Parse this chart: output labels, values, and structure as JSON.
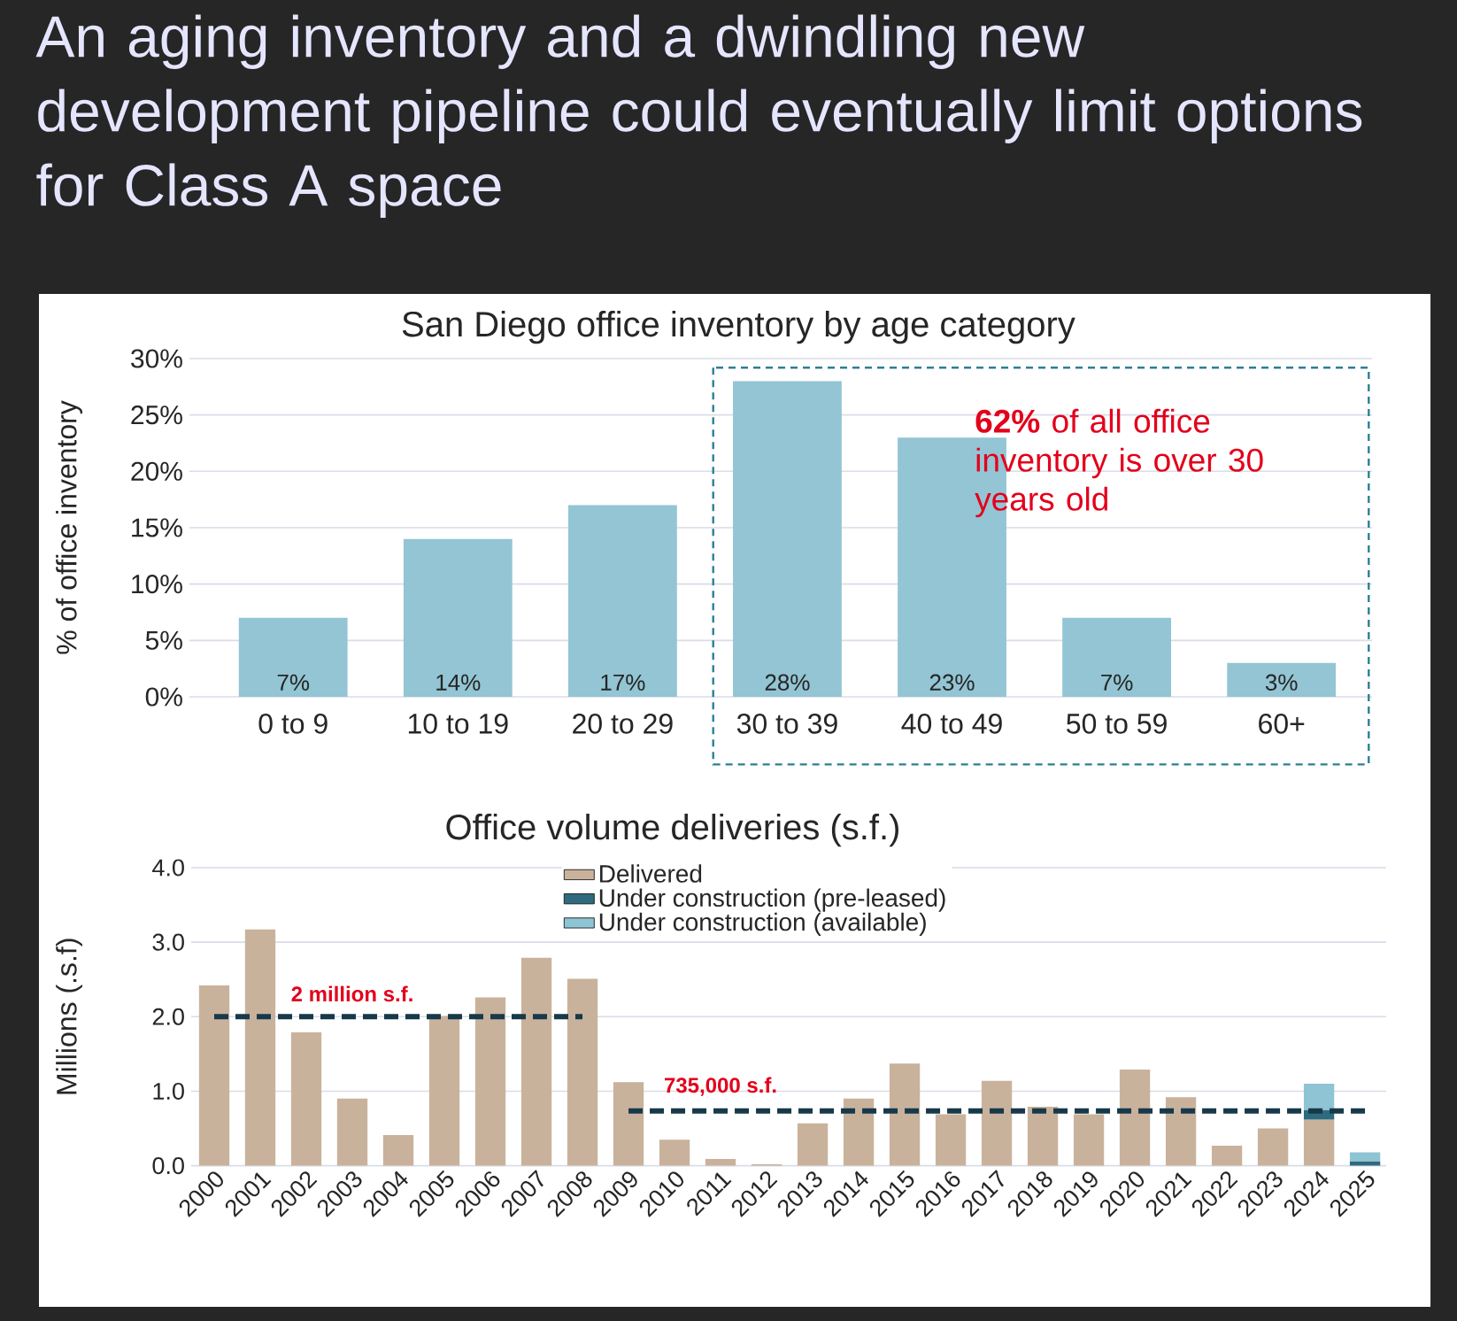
{
  "chart_data": [
    {
      "type": "bar",
      "title": "An aging inventory and a dwindling new development pipeline could eventually limit options for Class A space",
      "subtitle": "San Diego office inventory by age category",
      "ylabel": "% of office inventory",
      "categories": [
        "0 to 9",
        "10 to 19",
        "20 to 29",
        "30 to 39",
        "40 to 49",
        "50 to 59",
        "60+"
      ],
      "values": [
        7,
        14,
        17,
        28,
        23,
        7,
        3
      ],
      "value_labels": [
        "7%",
        "14%",
        "17%",
        "28%",
        "23%",
        "7%",
        "3%"
      ],
      "color": "#93c5d4",
      "ylim": [
        0,
        30
      ],
      "yticks": [
        {
          "value": 0,
          "label": "0%"
        },
        {
          "value": 5,
          "label": "5%"
        },
        {
          "value": 10,
          "label": "10%"
        },
        {
          "value": 15,
          "label": "15%"
        },
        {
          "value": 20,
          "label": "20%"
        },
        {
          "value": 25,
          "label": "25%"
        },
        {
          "value": 30,
          "label": "30%"
        }
      ],
      "grid": "y",
      "annotations": [
        "**62%** of all office inventory is over 30 years old"
      ]
    },
    {
      "type": "bar",
      "title": "Office volume deliveries (s.f.)",
      "ylabel": "Millions (.s.f)",
      "categories": [
        "2000",
        "2001",
        "2002",
        "2003",
        "2004",
        "2005",
        "2006",
        "2007",
        "2008",
        "2009",
        "2010",
        "2011",
        "2012",
        "2013",
        "2014",
        "2015",
        "2016",
        "2017",
        "2018",
        "2019",
        "2020",
        "2021",
        "2022",
        "2023",
        "2024",
        "2025"
      ],
      "stacked": true,
      "series": [
        {
          "name": "Delivered",
          "color": "#c9b29c",
          "values": [
            2.42,
            3.17,
            1.79,
            0.9,
            0.41,
            2.01,
            2.26,
            2.79,
            2.51,
            1.12,
            0.35,
            0.09,
            0.02,
            0.57,
            0.9,
            1.37,
            0.69,
            1.14,
            0.79,
            0.69,
            1.29,
            0.92,
            0.27,
            0.5,
            0.62,
            null
          ]
        },
        {
          "name": "Under construction (pre-leased)",
          "color": "#2e6b7e",
          "values": [
            null,
            null,
            null,
            null,
            null,
            null,
            null,
            null,
            null,
            null,
            null,
            null,
            null,
            null,
            null,
            null,
            null,
            null,
            null,
            null,
            null,
            null,
            null,
            null,
            0.13,
            0.06
          ]
        },
        {
          "name": "Under construction (available)",
          "color": "#8fc4d4",
          "values": [
            null,
            null,
            null,
            null,
            null,
            null,
            null,
            null,
            null,
            null,
            null,
            null,
            null,
            null,
            null,
            null,
            null,
            null,
            null,
            null,
            null,
            null,
            null,
            null,
            0.35,
            0.12
          ]
        },
        {
          "type": "line",
          "color": "#17394a",
          "line_style": "dashed",
          "values": [
            2.0,
            2.0,
            2.0,
            2.0,
            2.0,
            2.0,
            2.0,
            2.0,
            2.0,
            null,
            null,
            null,
            null,
            null,
            null,
            null,
            null,
            null,
            null,
            null,
            null,
            null,
            null,
            null,
            null,
            null
          ]
        },
        {
          "type": "line",
          "color": "#17394a",
          "line_style": "dashed",
          "values": [
            null,
            null,
            null,
            null,
            null,
            null,
            null,
            null,
            null,
            0.735,
            0.735,
            0.735,
            0.735,
            0.735,
            0.735,
            0.735,
            0.735,
            0.735,
            0.735,
            0.735,
            0.735,
            0.735,
            0.735,
            0.735,
            0.735,
            0.735
          ]
        }
      ],
      "ylim": [
        0,
        4
      ],
      "yticks": [
        {
          "value": 0,
          "label": "0.0"
        },
        {
          "value": 1,
          "label": "1.0"
        },
        {
          "value": 2,
          "label": "2.0"
        },
        {
          "value": 3,
          "label": "3.0"
        },
        {
          "value": 4,
          "label": "4.0"
        }
      ],
      "grid": "y",
      "legend": "top",
      "annotations": [
        {
          "text": "2 million s.f.",
          "x": "2003",
          "y": 2.0
        },
        {
          "text": "735,000 s.f.",
          "x": "2011",
          "y": 0.735
        }
      ]
    }
  ]
}
